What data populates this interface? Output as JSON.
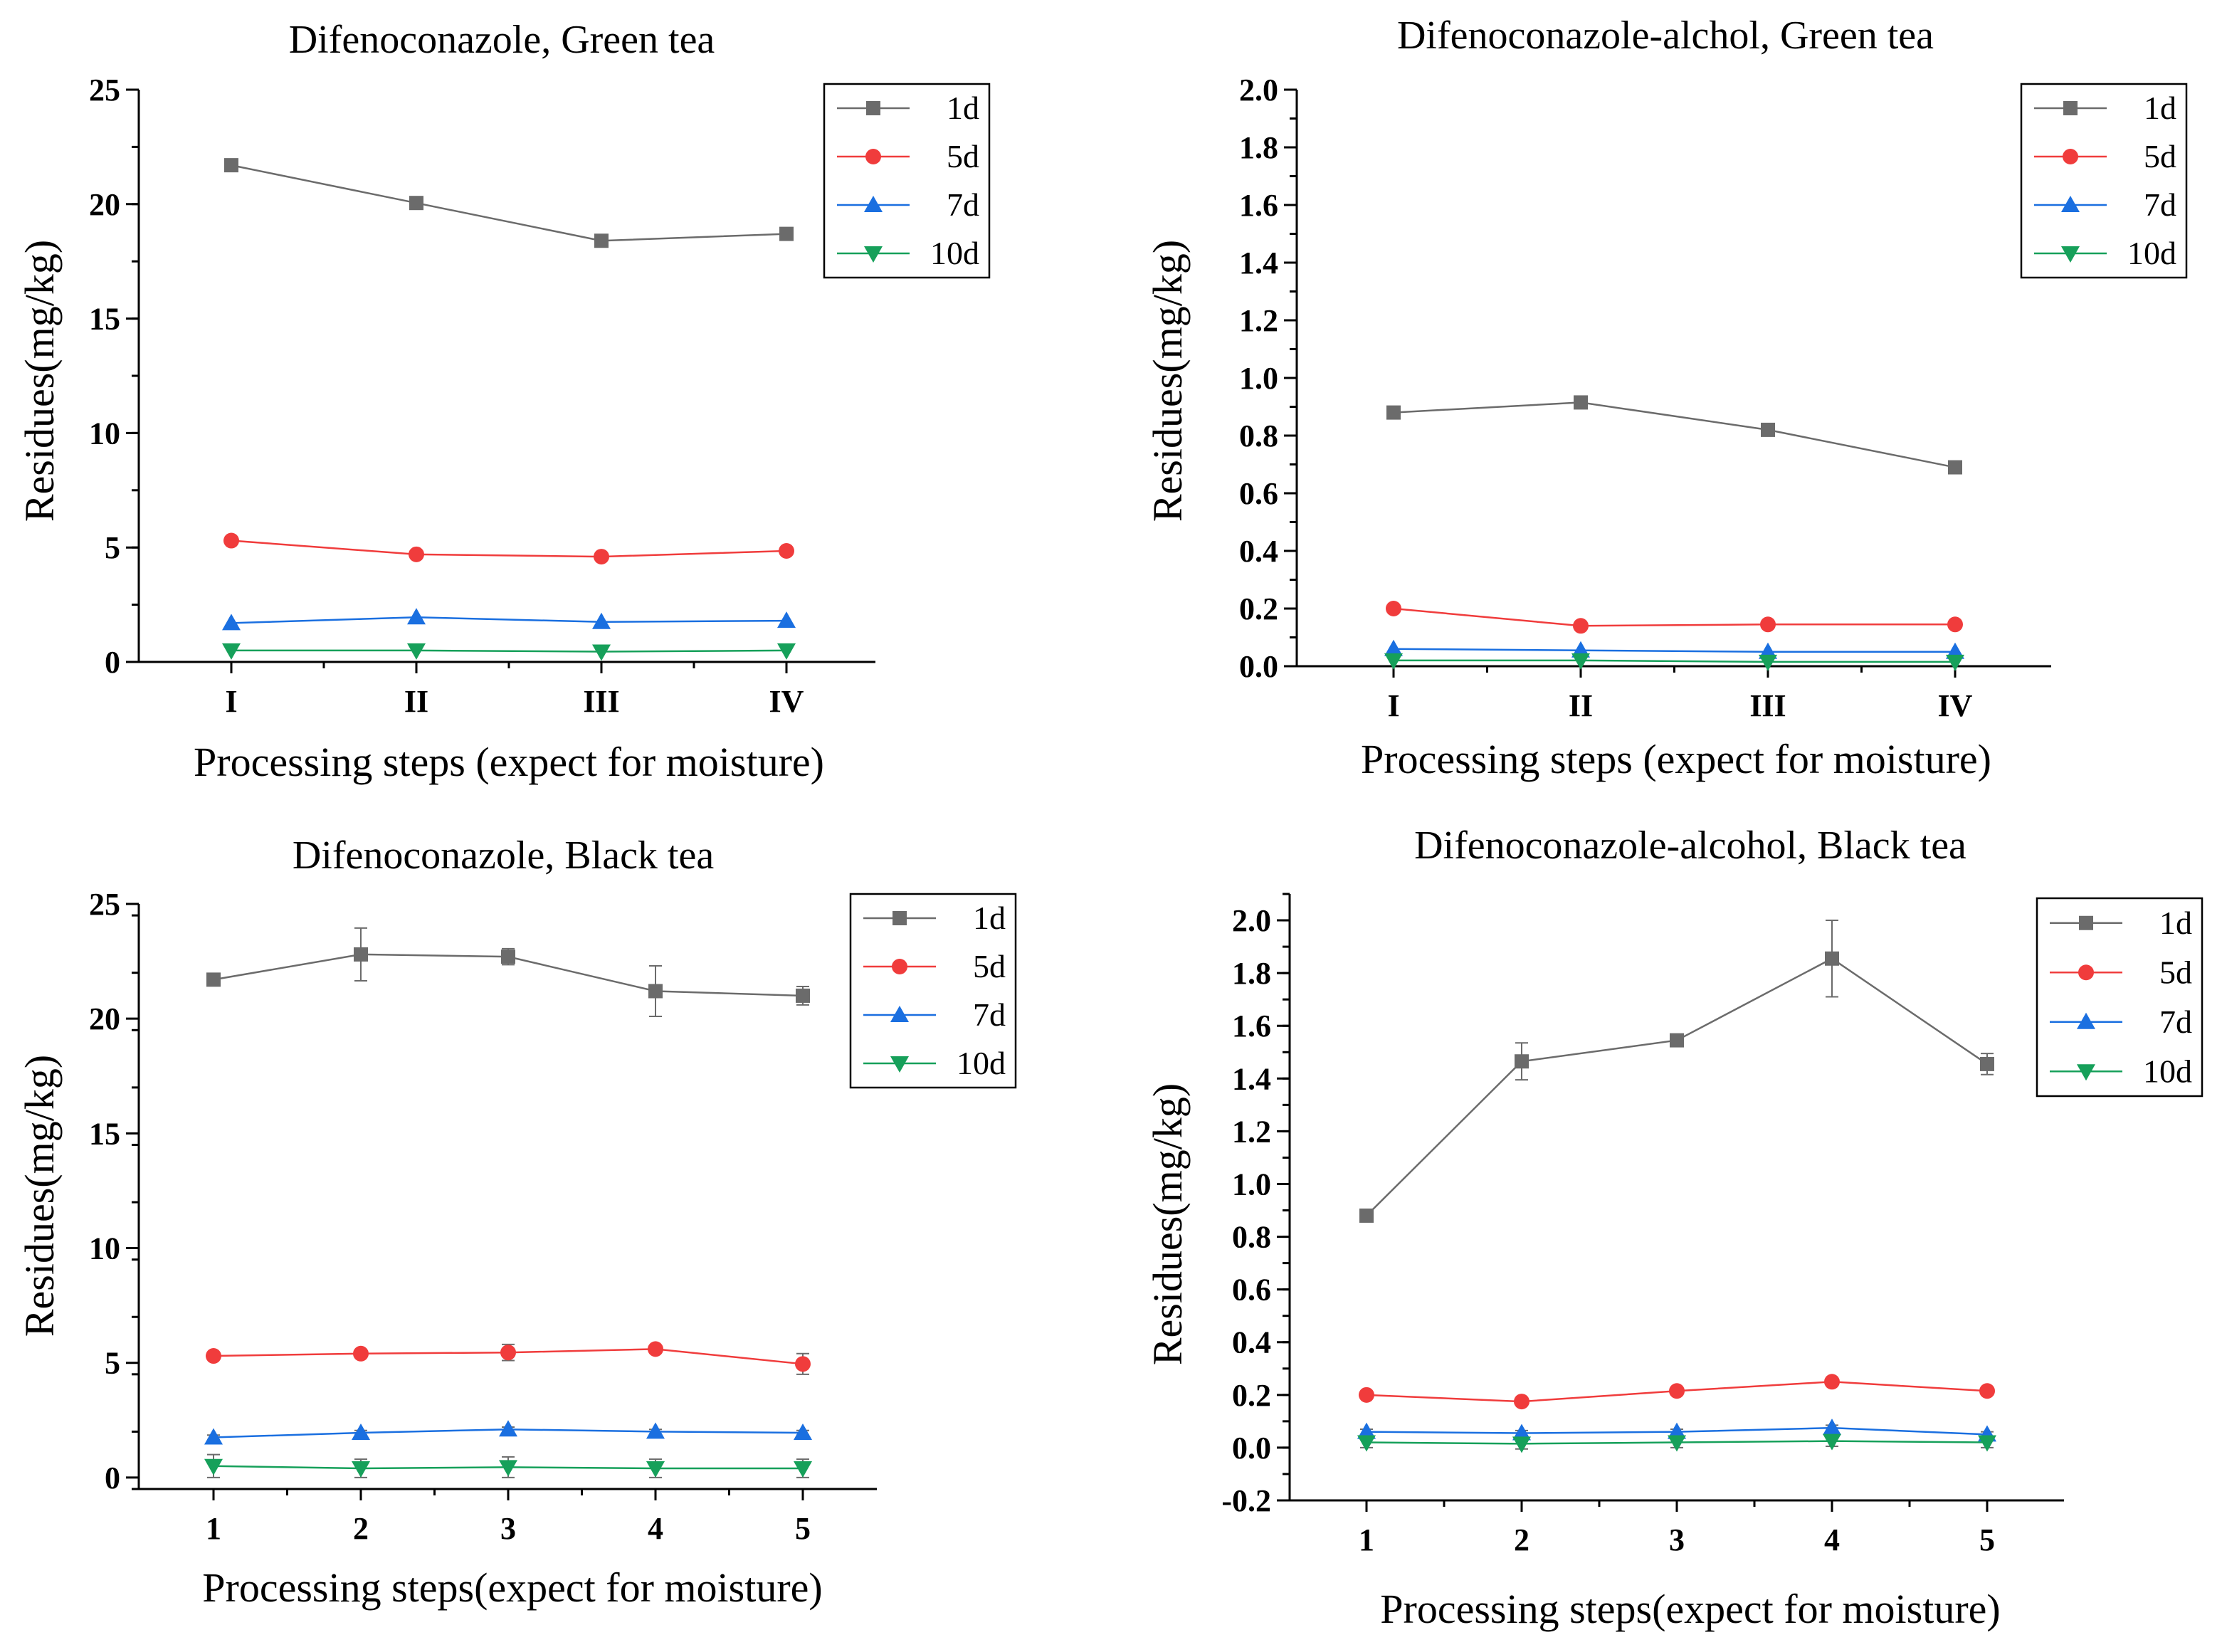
{
  "figure": {
    "panel_count": 4
  },
  "colors": {
    "1d": "#6b6b6b",
    "5d": "#f03c3c",
    "7d": "#1a6fe0",
    "10d": "#16a05a",
    "axis": "#000000",
    "error": "#6b6b6b"
  },
  "chart_data": [
    {
      "type": "line",
      "title": "Difenoconazole, Green tea",
      "xlabel": "Processing steps (expect for moisture)",
      "ylabel": "Residues(mg/kg)",
      "categories": [
        "I",
        "II",
        "III",
        "IV"
      ],
      "ylim": [
        0,
        25
      ],
      "yticks": [
        "0",
        "5",
        "10",
        "15",
        "20",
        "25"
      ],
      "yticks_values": [
        0,
        5,
        10,
        15,
        20,
        25
      ],
      "minor_step": 2.5,
      "legend_position": "top-right",
      "series": [
        {
          "name": "1d",
          "marker": "square",
          "values": [
            21.7,
            20.05,
            18.4,
            18.7
          ]
        },
        {
          "name": "5d",
          "marker": "circle",
          "values": [
            5.3,
            4.7,
            4.6,
            4.85
          ]
        },
        {
          "name": "7d",
          "marker": "triangle-up",
          "values": [
            1.7,
            1.95,
            1.75,
            1.8
          ]
        },
        {
          "name": "10d",
          "marker": "triangle-down",
          "values": [
            0.5,
            0.5,
            0.45,
            0.5
          ]
        }
      ]
    },
    {
      "type": "line",
      "title": "Difenoconazole-alchol, Green tea",
      "xlabel": "Processing steps (expect for moisture)",
      "ylabel": "Residues(mg/kg)",
      "categories": [
        "I",
        "II",
        "III",
        "IV"
      ],
      "ylim": [
        0,
        2.0
      ],
      "yticks": [
        "0.0",
        "0.2",
        "0.4",
        "0.6",
        "0.8",
        "1.0",
        "1.2",
        "1.4",
        "1.6",
        "1.8",
        "2.0"
      ],
      "yticks_values": [
        0,
        0.2,
        0.4,
        0.6,
        0.8,
        1.0,
        1.2,
        1.4,
        1.6,
        1.8,
        2.0
      ],
      "minor_step": 0.1,
      "legend_position": "top-right",
      "series": [
        {
          "name": "1d",
          "marker": "square",
          "values": [
            0.88,
            0.915,
            0.82,
            0.69
          ]
        },
        {
          "name": "5d",
          "marker": "circle",
          "values": [
            0.2,
            0.14,
            0.145,
            0.145
          ]
        },
        {
          "name": "7d",
          "marker": "triangle-up",
          "values": [
            0.06,
            0.055,
            0.05,
            0.05
          ]
        },
        {
          "name": "10d",
          "marker": "triangle-down",
          "values": [
            0.02,
            0.02,
            0.015,
            0.015
          ]
        }
      ]
    },
    {
      "type": "line",
      "title": "Difenoconazole, Black tea",
      "xlabel": "Processing steps(expect for moisture)",
      "ylabel": "Residues(mg/kg)",
      "categories": [
        "1",
        "2",
        "3",
        "4",
        "5"
      ],
      "ylim": [
        -0.5,
        25
      ],
      "yticks": [
        "0",
        "5",
        "10",
        "15",
        "20",
        "25"
      ],
      "yticks_values": [
        0,
        5,
        10,
        15,
        20,
        25
      ],
      "minor_step": 2.5,
      "legend_position": "top-right",
      "series": [
        {
          "name": "1d",
          "marker": "square",
          "values": [
            21.7,
            22.8,
            22.7,
            21.2,
            21.0
          ],
          "errors": [
            0.2,
            1.15,
            0.35,
            1.1,
            0.4
          ]
        },
        {
          "name": "5d",
          "marker": "circle",
          "values": [
            5.3,
            5.4,
            5.45,
            5.6,
            4.95
          ],
          "errors": [
            0.1,
            0.1,
            0.35,
            0.15,
            0.45
          ]
        },
        {
          "name": "7d",
          "marker": "triangle-up",
          "values": [
            1.75,
            1.95,
            2.1,
            2.0,
            1.95
          ],
          "errors": [
            0.1,
            0.1,
            0.1,
            0.1,
            0.1
          ]
        },
        {
          "name": "10d",
          "marker": "triangle-down",
          "values": [
            0.5,
            0.4,
            0.45,
            0.4,
            0.4
          ],
          "errors": [
            0.5,
            0.4,
            0.45,
            0.4,
            0.4
          ]
        }
      ]
    },
    {
      "type": "line",
      "title": "Difenoconazole-alcohol, Black tea",
      "xlabel": "Processing steps(expect for moisture)",
      "ylabel": "Residues(mg/kg)",
      "categories": [
        "1",
        "2",
        "3",
        "4",
        "5"
      ],
      "ylim": [
        -0.2,
        2.1
      ],
      "yticks": [
        "-0.2",
        "0.0",
        "0.2",
        "0.4",
        "0.6",
        "0.8",
        "1.0",
        "1.2",
        "1.4",
        "1.6",
        "1.8",
        "2.0"
      ],
      "yticks_values": [
        -0.2,
        0,
        0.2,
        0.4,
        0.6,
        0.8,
        1.0,
        1.2,
        1.4,
        1.6,
        1.8,
        2.0
      ],
      "minor_step": 0.1,
      "legend_position": "top-right",
      "series": [
        {
          "name": "1d",
          "marker": "square",
          "values": [
            0.88,
            1.465,
            1.545,
            1.855,
            1.455
          ],
          "errors": [
            0.01,
            0.07,
            0.01,
            0.145,
            0.04
          ]
        },
        {
          "name": "5d",
          "marker": "circle",
          "values": [
            0.2,
            0.175,
            0.215,
            0.25,
            0.215
          ],
          "errors": [
            0.01,
            0.01,
            0.01,
            0.01,
            0.01
          ]
        },
        {
          "name": "7d",
          "marker": "triangle-up",
          "values": [
            0.06,
            0.055,
            0.06,
            0.075,
            0.05
          ],
          "errors": [
            0.01,
            0.01,
            0.01,
            0.01,
            0.01
          ]
        },
        {
          "name": "10d",
          "marker": "triangle-down",
          "values": [
            0.02,
            0.015,
            0.02,
            0.025,
            0.02
          ],
          "errors": [
            0.02,
            0.02,
            0.02,
            0.02,
            0.02
          ]
        }
      ]
    }
  ]
}
